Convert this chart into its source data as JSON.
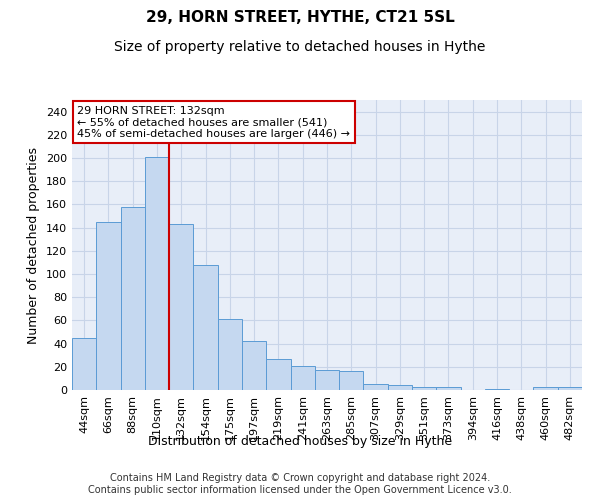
{
  "title": "29, HORN STREET, HYTHE, CT21 5SL",
  "subtitle": "Size of property relative to detached houses in Hythe",
  "xlabel": "Distribution of detached houses by size in Hythe",
  "ylabel": "Number of detached properties",
  "bar_labels": [
    "44sqm",
    "66sqm",
    "88sqm",
    "110sqm",
    "132sqm",
    "154sqm",
    "175sqm",
    "197sqm",
    "219sqm",
    "241sqm",
    "263sqm",
    "285sqm",
    "307sqm",
    "329sqm",
    "351sqm",
    "373sqm",
    "394sqm",
    "416sqm",
    "438sqm",
    "460sqm",
    "482sqm"
  ],
  "bar_values": [
    45,
    145,
    158,
    201,
    143,
    108,
    61,
    42,
    27,
    21,
    17,
    16,
    5,
    4,
    3,
    3,
    0,
    1,
    0,
    3,
    3
  ],
  "bar_color": "#c5d8f0",
  "bar_edge_color": "#5b9bd5",
  "vline_x_index": 3.5,
  "vline_color": "#cc0000",
  "annotation_text_line1": "29 HORN STREET: 132sqm",
  "annotation_text_line2": "← 55% of detached houses are smaller (541)",
  "annotation_text_line3": "45% of semi-detached houses are larger (446) →",
  "box_edge_color": "#cc0000",
  "ylim": [
    0,
    250
  ],
  "yticks": [
    0,
    20,
    40,
    60,
    80,
    100,
    120,
    140,
    160,
    180,
    200,
    220,
    240
  ],
  "grid_color": "#c8d4e8",
  "background_color": "#e8eef8",
  "footer_line1": "Contains HM Land Registry data © Crown copyright and database right 2024.",
  "footer_line2": "Contains public sector information licensed under the Open Government Licence v3.0.",
  "title_fontsize": 11,
  "subtitle_fontsize": 10,
  "axis_label_fontsize": 9,
  "tick_fontsize": 8,
  "footer_fontsize": 7
}
